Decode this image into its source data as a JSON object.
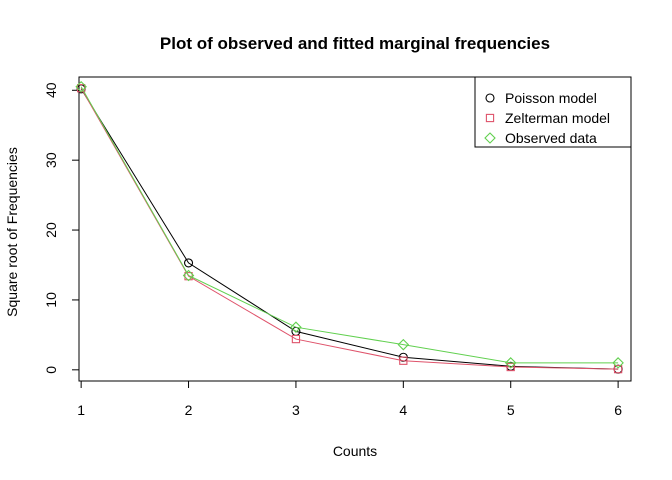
{
  "chart_data": {
    "type": "line",
    "title": "Plot of observed and fitted marginal frequencies",
    "xlabel": "Counts",
    "ylabel": "Square root of Frequencies",
    "x": [
      1,
      2,
      3,
      4,
      5,
      6
    ],
    "xticks": [
      "1",
      "2",
      "3",
      "4",
      "5",
      "6"
    ],
    "yticks": [
      "0",
      "10",
      "20",
      "30",
      "40"
    ],
    "xlim": [
      0.98,
      6.12
    ],
    "ylim": [
      -1.6,
      41.9
    ],
    "grid": false,
    "legend_position": "top-right",
    "series": [
      {
        "name": "Poisson model",
        "marker": "circle",
        "color": "#000000",
        "values": [
          40.2,
          15.3,
          5.5,
          1.8,
          0.5,
          0.1
        ]
      },
      {
        "name": "Zelterman model",
        "marker": "square",
        "color": "#DF536B",
        "values": [
          40.3,
          13.4,
          4.4,
          1.3,
          0.4,
          0.1
        ]
      },
      {
        "name": "Observed data",
        "marker": "diamond",
        "color": "#61D04F",
        "values": [
          40.5,
          13.5,
          6.1,
          3.6,
          1.0,
          1.0
        ]
      }
    ]
  }
}
